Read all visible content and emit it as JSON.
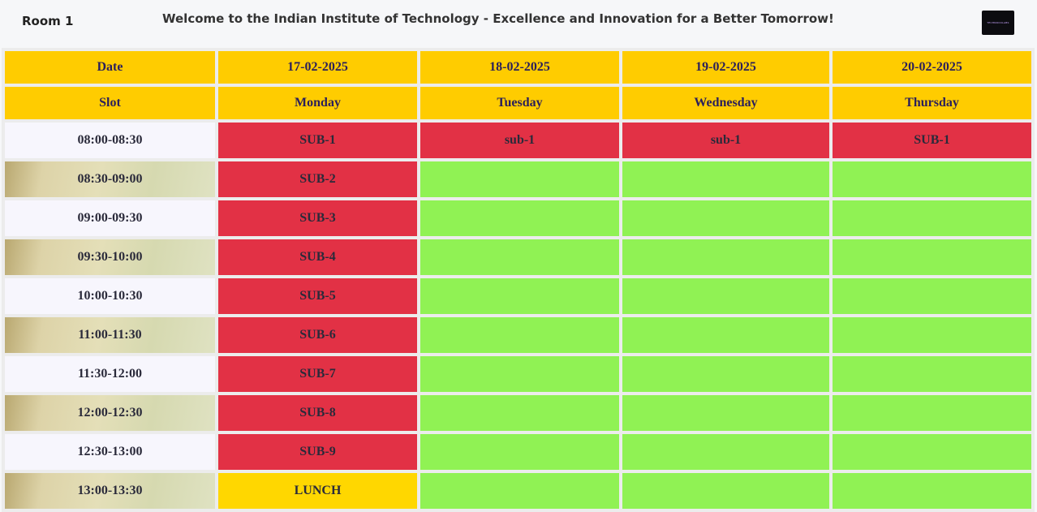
{
  "header": {
    "room": "Room 1",
    "welcome": "Welcome to the Indian Institute of Technology - Excellence and Innovation for a Better Tomorrow!",
    "logo_text": "TECHNOCOLABS"
  },
  "timetable": {
    "date_label": "Date",
    "slot_label": "Slot",
    "dates": [
      "17-02-2025",
      "18-02-2025",
      "19-02-2025",
      "20-02-2025"
    ],
    "days": [
      "Monday",
      "Tuesday",
      "Wednesday",
      "Thursday"
    ],
    "rows": [
      {
        "slot": "08:00-08:30",
        "cells": [
          "SUB-1",
          "sub-1",
          "sub-1",
          "SUB-1"
        ]
      },
      {
        "slot": "08:30-09:00",
        "cells": [
          "SUB-2",
          "",
          "",
          ""
        ]
      },
      {
        "slot": "09:00-09:30",
        "cells": [
          "SUB-3",
          "",
          "",
          ""
        ]
      },
      {
        "slot": "09:30-10:00",
        "cells": [
          "SUB-4",
          "",
          "",
          ""
        ]
      },
      {
        "slot": "10:00-10:30",
        "cells": [
          "SUB-5",
          "",
          "",
          ""
        ]
      },
      {
        "slot": "11:00-11:30",
        "cells": [
          "SUB-6",
          "",
          "",
          ""
        ]
      },
      {
        "slot": "11:30-12:00",
        "cells": [
          "SUB-7",
          "",
          "",
          ""
        ]
      },
      {
        "slot": "12:00-12:30",
        "cells": [
          "SUB-8",
          "",
          "",
          ""
        ]
      },
      {
        "slot": "12:30-13:00",
        "cells": [
          "SUB-9",
          "",
          "",
          ""
        ]
      },
      {
        "slot": "13:00-13:30",
        "cells": [
          "LUNCH",
          "",
          "",
          ""
        ]
      }
    ]
  },
  "colors": {
    "header_bg": "#ffcc00",
    "booked": "#e23145",
    "available": "#90f254",
    "lunch": "#ffd700"
  }
}
